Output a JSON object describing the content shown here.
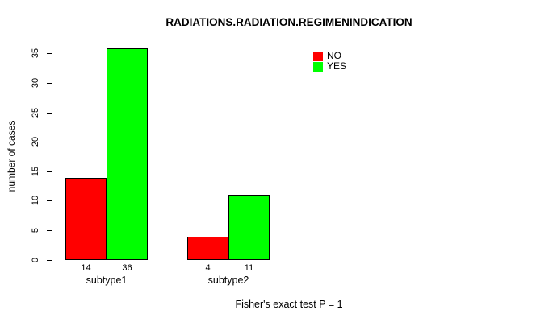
{
  "chart_data": {
    "type": "bar",
    "title": "RADIATIONS.RADIATION.REGIMENINDICATION",
    "xlabel": "",
    "ylabel": "number of cases",
    "categories": [
      "subtype1",
      "subtype2"
    ],
    "series": [
      {
        "name": "NO",
        "color": "#FF0000",
        "values": [
          14,
          4
        ]
      },
      {
        "name": "YES",
        "color": "#00FF00",
        "values": [
          36,
          11
        ]
      }
    ],
    "bar_value_labels": [
      [
        "14",
        "4"
      ],
      [
        "36",
        "11"
      ]
    ],
    "yticks": [
      0,
      5,
      10,
      15,
      20,
      25,
      30,
      35
    ],
    "ylim": [
      0,
      36
    ],
    "grid": false,
    "legend_position": "top-right",
    "bar_outline_color": "#000000",
    "annotation": "Fisher's exact test P = 1"
  }
}
